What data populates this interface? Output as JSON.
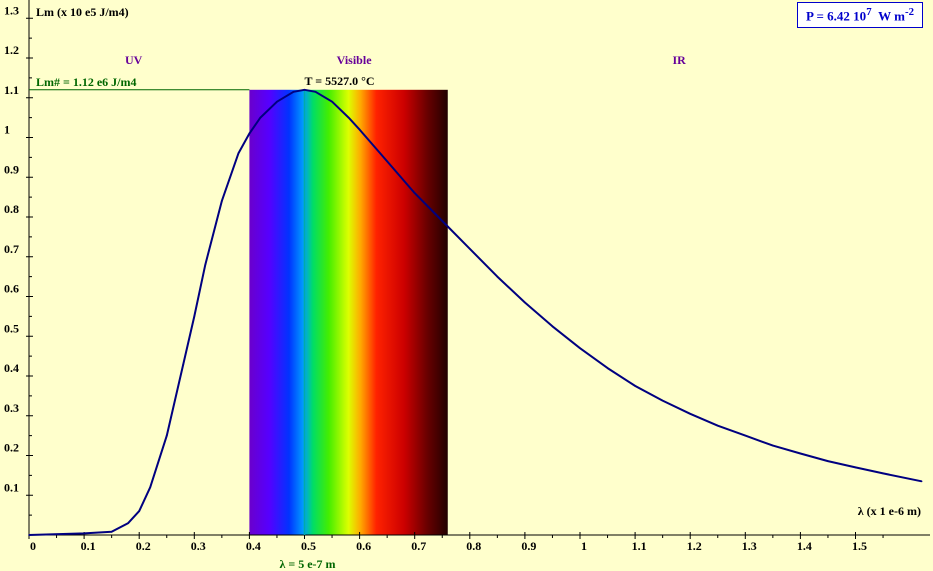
{
  "power": {
    "prefix": "P = 6.42 10",
    "exp": "7",
    "unit": "W m",
    "unit_exp": "-2"
  },
  "colors": {
    "background": "#FFFFCC",
    "curve": "#000080",
    "peak_line": "#006600",
    "region_label": "#660099",
    "marker_line": "#00AAAA"
  },
  "chart_data": {
    "type": "line",
    "title": "",
    "ylabel": "Lm (x 10 e5 J/m4)",
    "xlabel": "λ (x 1 e-6 m)",
    "xlim": [
      0,
      1.62
    ],
    "ylim": [
      0,
      1.35
    ],
    "x_ticks": [
      "0",
      "0.1",
      "0.2",
      "0.3",
      "0.4",
      "0.5",
      "0.6",
      "0.7",
      "0.8",
      "0.9",
      "1",
      "1.1",
      "1.2",
      "1.3",
      "1.4",
      "1.5"
    ],
    "y_ticks": [
      "0.1",
      "0.2",
      "0.3",
      "0.4",
      "0.5",
      "0.6",
      "0.7",
      "0.8",
      "0.9",
      "1",
      "1.1",
      "1.2",
      "1.3"
    ],
    "regions": [
      {
        "label": "UV",
        "center": 0.19
      },
      {
        "label": "Visible",
        "center": 0.59
      },
      {
        "label": "IR",
        "center": 1.18
      }
    ],
    "visible_band": [
      0.4,
      0.76
    ],
    "peak": {
      "x": 0.5,
      "y": 1.12,
      "label": "Lm# = 1.12 e6 J/m4"
    },
    "temperature_label": "T = 5527.0 °C",
    "marker": {
      "x": 0.5,
      "label": "λ = 5 e-7 m"
    },
    "series": [
      {
        "x": [
          0.0,
          0.1,
          0.15,
          0.18,
          0.2,
          0.22,
          0.25,
          0.28,
          0.3,
          0.32,
          0.35,
          0.38,
          0.4,
          0.42,
          0.45,
          0.48,
          0.5,
          0.52,
          0.55,
          0.58,
          0.6,
          0.65,
          0.7,
          0.75,
          0.8,
          0.85,
          0.9,
          0.95,
          1.0,
          1.05,
          1.1,
          1.15,
          1.2,
          1.25,
          1.3,
          1.35,
          1.4,
          1.45,
          1.5,
          1.55,
          1.62
        ],
        "values": [
          0.0,
          0.004,
          0.008,
          0.03,
          0.06,
          0.12,
          0.25,
          0.43,
          0.55,
          0.68,
          0.84,
          0.96,
          1.01,
          1.05,
          1.09,
          1.115,
          1.12,
          1.115,
          1.09,
          1.05,
          1.02,
          0.94,
          0.86,
          0.79,
          0.72,
          0.65,
          0.585,
          0.525,
          0.47,
          0.42,
          0.375,
          0.338,
          0.305,
          0.275,
          0.25,
          0.225,
          0.205,
          0.186,
          0.17,
          0.155,
          0.135
        ]
      }
    ]
  }
}
